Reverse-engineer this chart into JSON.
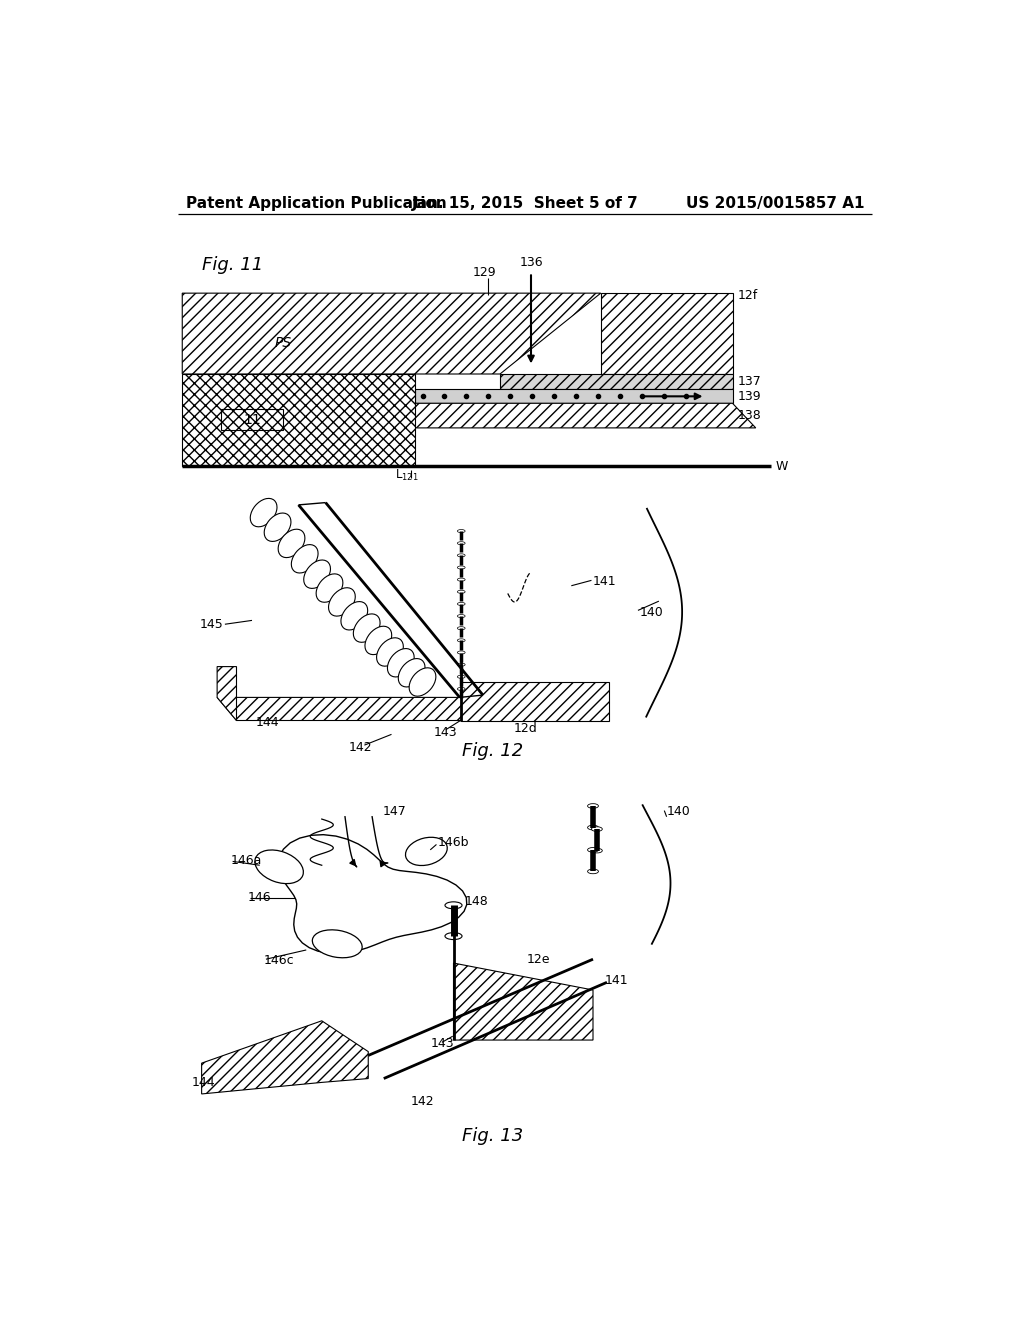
{
  "title_left": "Patent Application Publication",
  "title_mid": "Jan. 15, 2015  Sheet 5 of 7",
  "title_right": "US 2015/0015857 A1",
  "title_fontsize": 11,
  "bg_color": "#ffffff",
  "fig11_label": "Fig. 11",
  "fig12_label": "Fig. 12",
  "fig13_label": "Fig. 13"
}
